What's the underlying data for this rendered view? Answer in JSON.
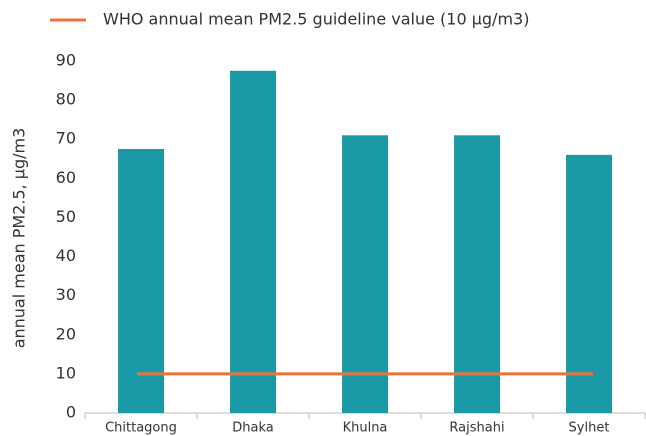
{
  "chart_data": {
    "type": "bar",
    "categories": [
      "Chittagong",
      "Dhaka",
      "Khulna",
      "Rajshahi",
      "Sylhet"
    ],
    "values": [
      67.5,
      87.5,
      71,
      71,
      66
    ],
    "color": "#1a9aa6",
    "ylabel": "annual mean PM2.5, µg/m3",
    "ylim": [
      0,
      90
    ],
    "yticks": [
      0,
      10,
      20,
      30,
      40,
      50,
      60,
      70,
      80,
      90
    ],
    "reference_line": {
      "name": "WHO annual mean PM2.5 guideline value (10 µg/m3)",
      "value": 10,
      "color": "#e8743b"
    }
  }
}
